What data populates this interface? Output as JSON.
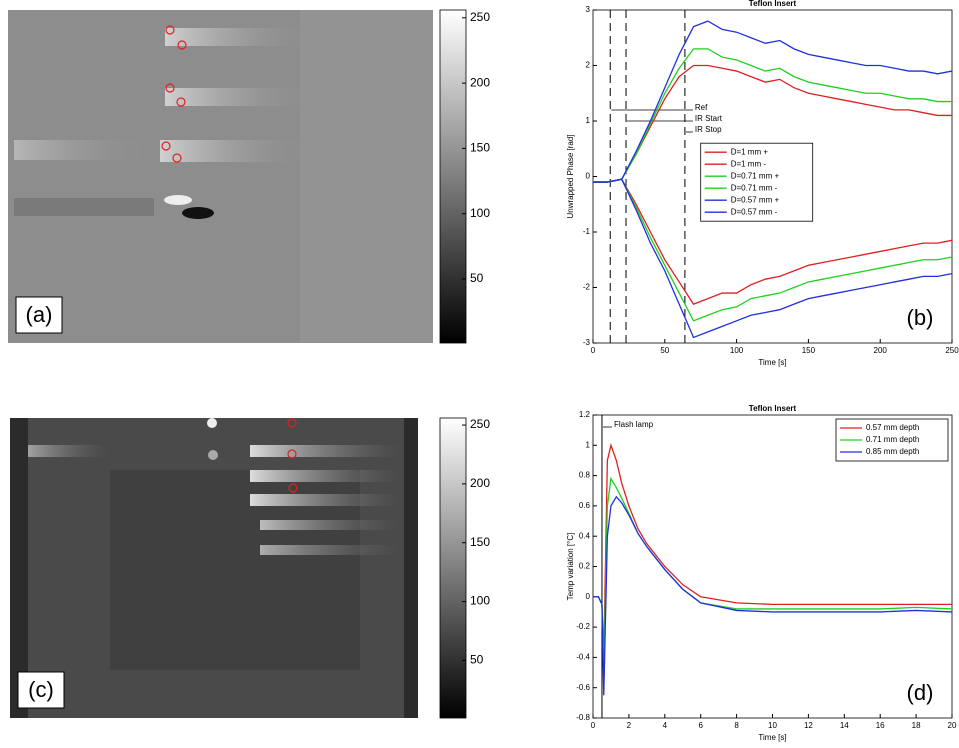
{
  "chart_data": [
    {
      "type": "image",
      "label": "(a)",
      "ylim": [
        1,
        256
      ],
      "yticks": [
        50,
        100,
        150,
        200,
        250
      ]
    },
    {
      "type": "line",
      "title": "Teflon Insert",
      "label": "(b)",
      "x_label": "Time [s]",
      "y_label": "Unwrapped Phase [rad]",
      "x": [
        0,
        10,
        20,
        30,
        40,
        50,
        60,
        70,
        80,
        90,
        100,
        110,
        120,
        130,
        140,
        150,
        160,
        170,
        180,
        190,
        200,
        210,
        220,
        230,
        240,
        250
      ],
      "xlim": [
        0,
        250
      ],
      "xticks": [
        0,
        50,
        100,
        150,
        200,
        250
      ],
      "ylim": [
        -3,
        3
      ],
      "yticks": [
        -3,
        -2,
        -1,
        0,
        1,
        2,
        3
      ],
      "legend": "center",
      "annotations": [
        {
          "text": "Ref",
          "x": 12,
          "style": "dashed"
        },
        {
          "text": "IR Start",
          "x": 23,
          "style": "dashed"
        },
        {
          "text": "IR Stop",
          "x": 64,
          "style": "dashed"
        }
      ],
      "series": [
        {
          "name": "D=1 mm +",
          "color": "#e02020",
          "values": [
            -0.1,
            -0.1,
            -0.05,
            0.4,
            0.9,
            1.4,
            1.8,
            2.0,
            2.0,
            1.95,
            1.9,
            1.8,
            1.7,
            1.75,
            1.6,
            1.5,
            1.45,
            1.4,
            1.35,
            1.3,
            1.25,
            1.2,
            1.2,
            1.15,
            1.1,
            1.1
          ]
        },
        {
          "name": "D=1 mm -",
          "color": "#e02020",
          "values": [
            -0.1,
            -0.1,
            -0.05,
            -0.5,
            -1.0,
            -1.5,
            -1.9,
            -2.3,
            -2.2,
            -2.1,
            -2.1,
            -1.95,
            -1.85,
            -1.8,
            -1.7,
            -1.6,
            -1.55,
            -1.5,
            -1.45,
            -1.4,
            -1.35,
            -1.3,
            -1.25,
            -1.2,
            -1.2,
            -1.15
          ]
        },
        {
          "name": "D=0.71 mm +",
          "color": "#20d020",
          "values": [
            -0.1,
            -0.1,
            -0.05,
            0.4,
            0.95,
            1.5,
            1.95,
            2.3,
            2.3,
            2.15,
            2.1,
            2.0,
            1.9,
            1.95,
            1.8,
            1.7,
            1.65,
            1.6,
            1.55,
            1.5,
            1.5,
            1.45,
            1.4,
            1.4,
            1.35,
            1.35
          ]
        },
        {
          "name": "D=0.71 mm -",
          "color": "#20d020",
          "values": [
            -0.1,
            -0.1,
            -0.05,
            -0.55,
            -1.1,
            -1.6,
            -2.1,
            -2.6,
            -2.5,
            -2.4,
            -2.35,
            -2.2,
            -2.15,
            -2.1,
            -2.0,
            -1.9,
            -1.85,
            -1.8,
            -1.75,
            -1.7,
            -1.65,
            -1.6,
            -1.55,
            -1.5,
            -1.5,
            -1.45
          ]
        },
        {
          "name": "D=0.57 mm +",
          "color": "#2030e0",
          "values": [
            -0.1,
            -0.1,
            -0.05,
            0.45,
            1.0,
            1.6,
            2.2,
            2.7,
            2.8,
            2.65,
            2.6,
            2.5,
            2.4,
            2.45,
            2.3,
            2.2,
            2.15,
            2.1,
            2.05,
            2.0,
            2.0,
            1.95,
            1.9,
            1.9,
            1.85,
            1.9
          ]
        },
        {
          "name": "D=0.57 mm -",
          "color": "#2030e0",
          "values": [
            -0.1,
            -0.1,
            -0.05,
            -0.6,
            -1.2,
            -1.7,
            -2.3,
            -2.9,
            -2.8,
            -2.7,
            -2.6,
            -2.5,
            -2.45,
            -2.4,
            -2.3,
            -2.2,
            -2.15,
            -2.1,
            -2.05,
            -2.0,
            -1.95,
            -1.9,
            -1.85,
            -1.8,
            -1.8,
            -1.75
          ]
        }
      ]
    },
    {
      "type": "image",
      "label": "(c)",
      "ylim": [
        1,
        256
      ],
      "yticks": [
        50,
        100,
        150,
        200,
        250
      ]
    },
    {
      "type": "line",
      "title": "Teflon Insert",
      "label": "(d)",
      "x_label": "Time [s]",
      "y_label": "Temp variation [°C]",
      "x": [
        0,
        0.3,
        0.5,
        0.6,
        0.8,
        1,
        1.3,
        1.6,
        2,
        2.5,
        3,
        4,
        5,
        6,
        8,
        10,
        12,
        14,
        16,
        18,
        20
      ],
      "xlim": [
        0,
        20
      ],
      "xticks": [
        0,
        2,
        4,
        6,
        8,
        10,
        12,
        14,
        16,
        18,
        20
      ],
      "ylim": [
        -0.8,
        1.2
      ],
      "yticks": [
        -0.8,
        -0.6,
        -0.4,
        -0.2,
        0,
        0.2,
        0.4,
        0.6,
        0.8,
        1,
        1.2
      ],
      "legend": "upper right",
      "annotations": [
        {
          "text": "Flash lamp",
          "x": 0.5,
          "style": "solid"
        }
      ],
      "series": [
        {
          "name": "0.57 mm depth",
          "color": "#e02020",
          "values": [
            0,
            0,
            -0.05,
            -0.4,
            0.9,
            1.0,
            0.9,
            0.75,
            0.6,
            0.45,
            0.35,
            0.2,
            0.08,
            0,
            -0.04,
            -0.05,
            -0.05,
            -0.05,
            -0.05,
            -0.05,
            -0.05
          ]
        },
        {
          "name": "0.71 mm depth",
          "color": "#20d020",
          "values": [
            0,
            0,
            -0.05,
            -0.5,
            0.6,
            0.78,
            0.72,
            0.65,
            0.55,
            0.42,
            0.33,
            0.18,
            0.05,
            -0.04,
            -0.08,
            -0.08,
            -0.08,
            -0.08,
            -0.08,
            -0.07,
            -0.08
          ]
        },
        {
          "name": "0.85 mm depth",
          "color": "#2030e0",
          "values": [
            0,
            0,
            -0.05,
            -0.65,
            0.4,
            0.6,
            0.66,
            0.62,
            0.54,
            0.42,
            0.33,
            0.18,
            0.05,
            -0.04,
            -0.09,
            -0.1,
            -0.1,
            -0.1,
            -0.1,
            -0.09,
            -0.1
          ]
        }
      ]
    }
  ]
}
